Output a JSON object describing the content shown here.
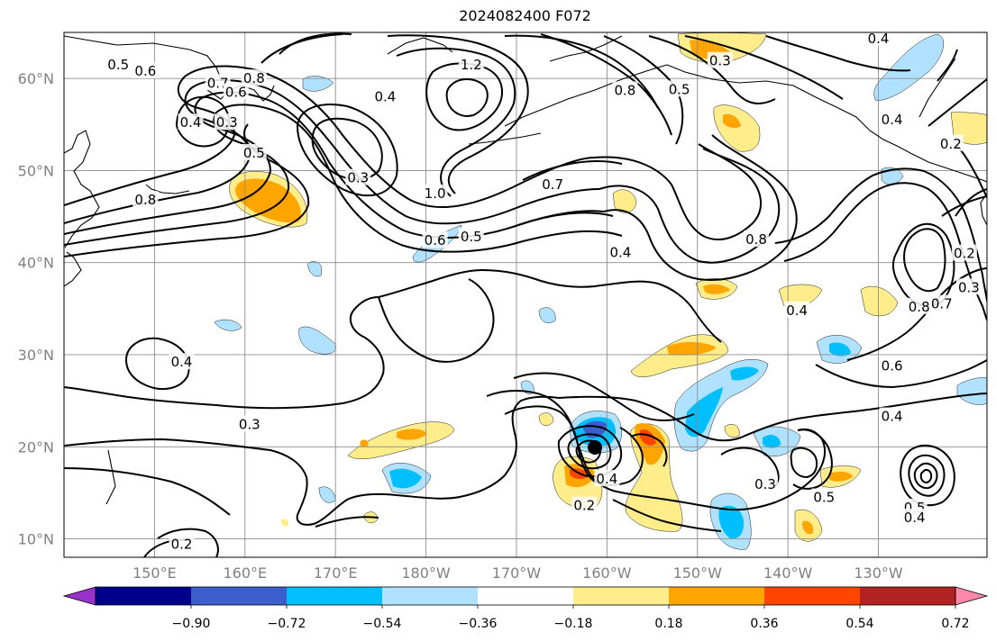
{
  "title": "2024082400 F072",
  "lat_labels": [
    {
      "lat": 60,
      "label": "60°N"
    },
    {
      "lat": 50,
      "label": "50°N"
    },
    {
      "lat": 40,
      "label": "40°N"
    },
    {
      "lat": 30,
      "label": "30°N"
    },
    {
      "lat": 20,
      "label": "20°N"
    },
    {
      "lat": 10,
      "label": "10°N"
    }
  ],
  "lon_labels": [
    {
      "lon": 150,
      "label": "150°E"
    },
    {
      "lon": 160,
      "label": "160°E"
    },
    {
      "lon": 170,
      "label": "170°E"
    },
    {
      "lon": 180,
      "label": "180°W"
    },
    {
      "lon": 190,
      "label": "170°W"
    },
    {
      "lon": 200,
      "label": "160°W"
    },
    {
      "lon": 210,
      "label": "150°W"
    },
    {
      "lon": 220,
      "label": "140°W"
    },
    {
      "lon": 230,
      "label": "130°W"
    }
  ],
  "map_extent": {
    "lon_min": 140,
    "lon_max": 242,
    "lat_min": 8,
    "lat_max": 65
  },
  "colorbar": {
    "tick_labels": [
      "−0.90",
      "−0.72",
      "−0.54",
      "−0.36",
      "−0.18",
      "0.18",
      "0.36",
      "0.54",
      "0.72",
      "0.90"
    ],
    "colors": [
      "#9932cc",
      "#00008b",
      "#3a5fcd",
      "#00bfff",
      "#b0e2ff",
      "#ffffff",
      "#ffec8b",
      "#ffa500",
      "#ff4500",
      "#b22222",
      "#ff88aa"
    ],
    "extend": "both"
  },
  "contour_labels": [
    {
      "lon": 146.0,
      "lat": 61.5,
      "text": "0.5"
    },
    {
      "lon": 149.0,
      "lat": 60.8,
      "text": "0.6"
    },
    {
      "lon": 157.0,
      "lat": 59.5,
      "text": "0.7"
    },
    {
      "lon": 161.0,
      "lat": 60.0,
      "text": "0.8"
    },
    {
      "lon": 159.0,
      "lat": 58.5,
      "text": "0.6"
    },
    {
      "lon": 175.5,
      "lat": 58.0,
      "text": "0.4"
    },
    {
      "lon": 154.0,
      "lat": 55.2,
      "text": "0.4"
    },
    {
      "lon": 158.0,
      "lat": 55.2,
      "text": "0.3"
    },
    {
      "lon": 161.0,
      "lat": 51.9,
      "text": "0.5"
    },
    {
      "lon": 149.0,
      "lat": 46.8,
      "text": "0.8"
    },
    {
      "lon": 172.5,
      "lat": 49.2,
      "text": "0.3"
    },
    {
      "lon": 185.0,
      "lat": 61.5,
      "text": "1.2"
    },
    {
      "lon": 181.0,
      "lat": 47.5,
      "text": "1.0"
    },
    {
      "lon": 181.0,
      "lat": 42.4,
      "text": "0.6"
    },
    {
      "lon": 185.0,
      "lat": 42.8,
      "text": "0.5"
    },
    {
      "lon": 194.0,
      "lat": 48.5,
      "text": "0.7"
    },
    {
      "lon": 202.0,
      "lat": 58.7,
      "text": "0.8"
    },
    {
      "lon": 208.0,
      "lat": 58.8,
      "text": "0.5"
    },
    {
      "lon": 212.5,
      "lat": 61.9,
      "text": "0.3"
    },
    {
      "lon": 230.0,
      "lat": 64.3,
      "text": "0.4"
    },
    {
      "lon": 231.5,
      "lat": 55.5,
      "text": "0.4"
    },
    {
      "lon": 238.0,
      "lat": 52.9,
      "text": "0.2"
    },
    {
      "lon": 216.5,
      "lat": 42.5,
      "text": "0.8"
    },
    {
      "lon": 201.5,
      "lat": 41.1,
      "text": "0.4"
    },
    {
      "lon": 221.0,
      "lat": 34.8,
      "text": "0.4"
    },
    {
      "lon": 234.5,
      "lat": 35.2,
      "text": "0.8"
    },
    {
      "lon": 239.5,
      "lat": 41.0,
      "text": "0.2"
    },
    {
      "lon": 240.0,
      "lat": 37.3,
      "text": "0.3"
    },
    {
      "lon": 237.0,
      "lat": 35.5,
      "text": "0.7"
    },
    {
      "lon": 231.5,
      "lat": 28.8,
      "text": "0.6"
    },
    {
      "lon": 231.5,
      "lat": 23.3,
      "text": "0.4"
    },
    {
      "lon": 153.0,
      "lat": 29.2,
      "text": "0.4"
    },
    {
      "lon": 160.5,
      "lat": 22.4,
      "text": "0.3"
    },
    {
      "lon": 200.0,
      "lat": 16.5,
      "text": "0.4"
    },
    {
      "lon": 197.5,
      "lat": 13.6,
      "text": "0.2"
    },
    {
      "lon": 217.5,
      "lat": 15.9,
      "text": "0.3"
    },
    {
      "lon": 224.0,
      "lat": 14.5,
      "text": "0.5"
    },
    {
      "lon": 234.0,
      "lat": 13.4,
      "text": "0.5"
    },
    {
      "lon": 234.0,
      "lat": 12.3,
      "text": "0.4"
    },
    {
      "lon": 153.0,
      "lat": 9.4,
      "text": "0.2"
    }
  ]
}
